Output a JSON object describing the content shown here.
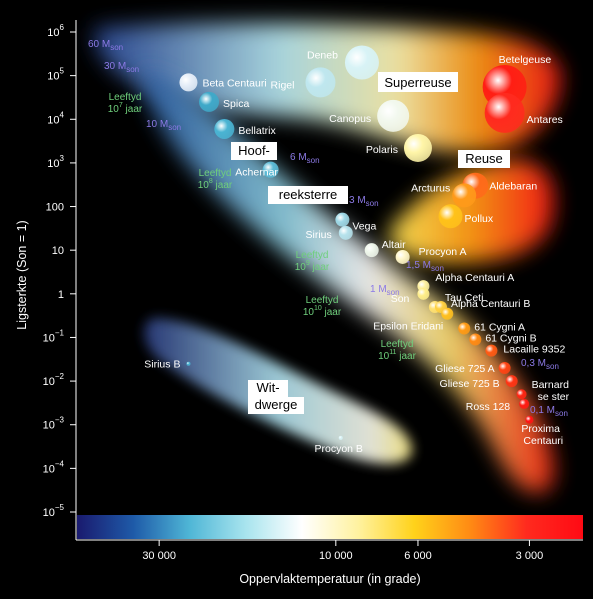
{
  "chart_data": {
    "type": "scatter",
    "title": "",
    "xlabel": "Oppervlaktemperatuur (in grade)",
    "ylabel": "Ligsterkte (Son = 1)",
    "x_scale": "log",
    "y_scale": "log",
    "x_reversed": true,
    "xlim": [
      50000,
      2150
    ],
    "ylim": [
      1e-05,
      1000000
    ],
    "x_ticks": [
      {
        "value": 30000,
        "label": "30 000"
      },
      {
        "value": 10000,
        "label": "10 000"
      },
      {
        "value": 6000,
        "label": "6 000"
      },
      {
        "value": 3000,
        "label": "3 000"
      }
    ],
    "y_ticks": [
      {
        "value": 1000000,
        "base": "10",
        "exp": "6"
      },
      {
        "value": 100000,
        "base": "10",
        "exp": "5"
      },
      {
        "value": 10000,
        "base": "10",
        "exp": "4"
      },
      {
        "value": 1000,
        "base": "10",
        "exp": "3"
      },
      {
        "value": 100,
        "base": "100",
        "exp": ""
      },
      {
        "value": 10,
        "base": "10",
        "exp": ""
      },
      {
        "value": 1,
        "base": "1",
        "exp": ""
      },
      {
        "value": 0.1,
        "base": "10",
        "exp": "−1"
      },
      {
        "value": 0.01,
        "base": "10",
        "exp": "−2"
      },
      {
        "value": 0.001,
        "base": "10",
        "exp": "−3"
      },
      {
        "value": 0.0001,
        "base": "10",
        "exp": "−4"
      },
      {
        "value": 1e-05,
        "base": "10",
        "exp": "−5"
      }
    ],
    "grid": false,
    "colorbar": [
      "#1a1a6e",
      "#1e5aa8",
      "#4fb6d6",
      "#a8e4ee",
      "#ffffff",
      "#fff2a0",
      "#ffd21a",
      "#ff8a14",
      "#ff2a1e",
      "#ff0a14"
    ],
    "regions": [
      {
        "name": "Superreuse",
        "lines": [
          "Superreuse"
        ]
      },
      {
        "name": "Reuse",
        "lines": [
          "Reuse"
        ]
      },
      {
        "name": "Hoofreeksterre",
        "lines": [
          "Hoof-",
          "reeksterre"
        ]
      },
      {
        "name": "Witdwerge",
        "lines": [
          "Wit-",
          "dwerge"
        ]
      }
    ],
    "stars": [
      {
        "name": "Deneb",
        "temp": 8500,
        "lum": 200000,
        "r": 17,
        "color": "#d8f3f6"
      },
      {
        "name": "Rigel",
        "temp": 11000,
        "lum": 70000,
        "r": 15,
        "color": "#bfe7ef"
      },
      {
        "name": "Beta Centauri",
        "temp": 25000,
        "lum": 70000,
        "r": 9,
        "color": "#e6eef8"
      },
      {
        "name": "Spica",
        "temp": 22000,
        "lum": 25000,
        "r": 10,
        "color": "#3fa9c9"
      },
      {
        "name": "Canopus",
        "temp": 7000,
        "lum": 12000,
        "r": 16,
        "color": "#f2f8ee"
      },
      {
        "name": "Bellatrix",
        "temp": 20000,
        "lum": 6000,
        "r": 10,
        "color": "#4ab4d3"
      },
      {
        "name": "Polaris",
        "temp": 6000,
        "lum": 2200,
        "r": 14,
        "color": "#fff5a8"
      },
      {
        "name": "Betelgeuse",
        "temp": 3500,
        "lum": 55000,
        "r": 22,
        "color": "#ff1e14"
      },
      {
        "name": "Antares",
        "temp": 3500,
        "lum": 14000,
        "r": 20,
        "color": "#ff2a1e"
      },
      {
        "name": "Achernar",
        "temp": 15000,
        "lum": 700,
        "r": 8,
        "color": "#5bbad6"
      },
      {
        "name": "Aldebaran",
        "temp": 4200,
        "lum": 300,
        "r": 13,
        "color": "#ff6a1a"
      },
      {
        "name": "Arcturus",
        "temp": 4500,
        "lum": 180,
        "r": 12,
        "color": "#ff9a1a"
      },
      {
        "name": "Pollux",
        "temp": 4900,
        "lum": 60,
        "r": 12,
        "color": "#ffc21a"
      },
      {
        "name": "Vega",
        "temp": 9600,
        "lum": 50,
        "r": 7,
        "color": "#9ed8e6"
      },
      {
        "name": "Sirius",
        "temp": 9400,
        "lum": 25,
        "r": 7,
        "color": "#b6e2ec"
      },
      {
        "name": "Altair",
        "temp": 8000,
        "lum": 10,
        "r": 7,
        "color": "#eef6ea"
      },
      {
        "name": "Procyon A",
        "temp": 6600,
        "lum": 7,
        "r": 7,
        "color": "#fff6c8"
      },
      {
        "name": "Alpha Centauri A",
        "temp": 5800,
        "lum": 1.5,
        "r": 6,
        "color": "#fff1a0"
      },
      {
        "name": "Son",
        "temp": 5800,
        "lum": 1,
        "r": 6,
        "color": "#ffee8a"
      },
      {
        "name": "Tau Ceti",
        "temp": 5400,
        "lum": 0.5,
        "r": 6,
        "color": "#ffe070"
      },
      {
        "name": "Alpha Centauri B",
        "temp": 5200,
        "lum": 0.5,
        "r": 6,
        "color": "#ffd040"
      },
      {
        "name": "Epsilon Eridani",
        "temp": 5000,
        "lum": 0.35,
        "r": 6,
        "color": "#ffc020"
      },
      {
        "name": "61 Cygni A",
        "temp": 4500,
        "lum": 0.16,
        "r": 6,
        "color": "#ff9a14"
      },
      {
        "name": "61 Cygni B",
        "temp": 4200,
        "lum": 0.09,
        "r": 6,
        "color": "#ff8a14"
      },
      {
        "name": "Lacaille 9352",
        "temp": 3800,
        "lum": 0.05,
        "r": 6,
        "color": "#ff5a14"
      },
      {
        "name": "Gliese 725 A",
        "temp": 3500,
        "lum": 0.02,
        "r": 6,
        "color": "#ff4414"
      },
      {
        "name": "Gliese 725 B",
        "temp": 3350,
        "lum": 0.01,
        "r": 6,
        "color": "#ff3414"
      },
      {
        "name": "Barnard se ster",
        "temp": 3150,
        "lum": 0.005,
        "r": 5,
        "color": "#ff2614"
      },
      {
        "name": "Ross 128",
        "temp": 3100,
        "lum": 0.003,
        "r": 5,
        "color": "#ff1c14"
      },
      {
        "name": "Proxima Centauri",
        "temp": 3000,
        "lum": 0.0013,
        "r": 4,
        "color": "#ff1414"
      },
      {
        "name": "Sirius B",
        "temp": 25000,
        "lum": 0.025,
        "r": 2,
        "color": "#4ab4d3"
      },
      {
        "name": "Procyon B",
        "temp": 9700,
        "lum": 0.0005,
        "r": 2,
        "color": "#d8f3f6"
      }
    ],
    "mass_labels": [
      {
        "text": "60",
        "unit": "M",
        "sub": "son"
      },
      {
        "text": "30",
        "unit": "M",
        "sub": "son"
      },
      {
        "text": "10",
        "unit": "M",
        "sub": "son"
      },
      {
        "text": "6",
        "unit": "M",
        "sub": "son"
      },
      {
        "text": "3",
        "unit": "M",
        "sub": "son"
      },
      {
        "text": "1,5",
        "unit": "M",
        "sub": "son"
      },
      {
        "text": "1",
        "unit": "M",
        "sub": "son"
      },
      {
        "text": "0,3",
        "unit": "M",
        "sub": "son"
      },
      {
        "text": "0,1",
        "unit": "M",
        "sub": "son"
      }
    ],
    "age_labels": [
      {
        "line1": "Leeftyd",
        "base": "10",
        "exp": "7",
        "suffix": "jaar"
      },
      {
        "line1": "Leeftyd",
        "base": "10",
        "exp": "8",
        "suffix": "jaar"
      },
      {
        "line1": "Leeftyd",
        "base": "10",
        "exp": "9",
        "suffix": "jaar"
      },
      {
        "line1": "Leeftyd",
        "base": "10",
        "exp": "10",
        "suffix": "jaar"
      },
      {
        "line1": "Leeftyd",
        "base": "10",
        "exp": "11",
        "suffix": "jaar"
      }
    ]
  }
}
